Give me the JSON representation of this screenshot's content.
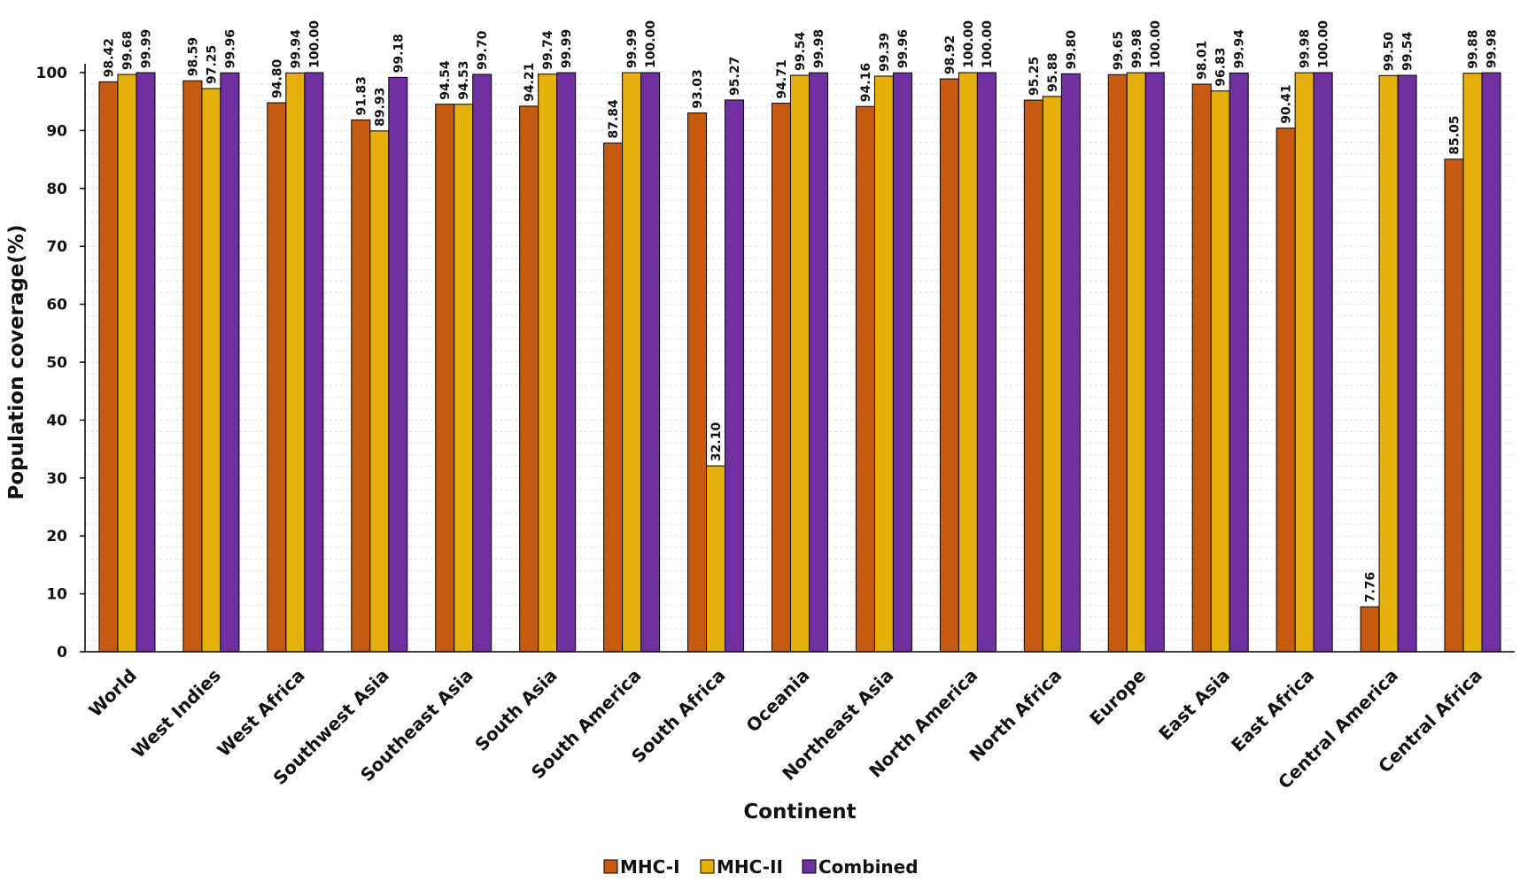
{
  "chart_data": {
    "type": "bar",
    "title": "",
    "xlabel": "Continent",
    "ylabel": "Population coverage(%)",
    "ylim": [
      0,
      100
    ],
    "yticks": [
      0,
      10,
      20,
      30,
      40,
      50,
      60,
      70,
      80,
      90,
      100
    ],
    "grid": true,
    "legend_position": "bottom-center",
    "categories": [
      "World",
      "West Indies",
      "West Africa",
      "Southwest Asia",
      "Southeast Asia",
      "South Asia",
      "South America",
      "South Africa",
      "Oceania",
      "Northeast Asia",
      "North America",
      "North Africa",
      "Europe",
      "East Asia",
      "East Africa",
      "Central America",
      "Central Africa"
    ],
    "series": [
      {
        "name": "MHC-I",
        "color": "#C55A11",
        "values": [
          98.42,
          98.59,
          94.8,
          91.83,
          94.54,
          94.21,
          87.84,
          93.03,
          94.71,
          94.16,
          98.92,
          95.25,
          99.65,
          98.01,
          90.41,
          7.76,
          85.05
        ]
      },
      {
        "name": "MHC-II",
        "color": "#E6B00A",
        "values": [
          99.68,
          97.25,
          99.94,
          89.93,
          94.53,
          99.74,
          99.99,
          32.1,
          99.54,
          99.39,
          100.0,
          95.88,
          99.98,
          96.83,
          99.98,
          99.5,
          99.88
        ]
      },
      {
        "name": "Combined",
        "color": "#7030A0",
        "values": [
          99.99,
          99.96,
          100.0,
          99.18,
          99.7,
          99.99,
          100.0,
          95.27,
          99.98,
          99.96,
          100.0,
          99.8,
          100.0,
          99.94,
          100.0,
          99.54,
          99.98
        ]
      }
    ],
    "data_labels": [
      [
        "98.42",
        "98.59",
        "94.80",
        "91.83",
        "94.54",
        "94.21",
        "87.84",
        "93.03",
        "94.71",
        "94.16",
        "98.92",
        "95.25",
        "99.65",
        "98.01",
        "90.41",
        "7.76",
        "85.05"
      ],
      [
        "99.68",
        "97.25",
        "99.94",
        "89.93",
        "94.53",
        "99.74",
        "99.99",
        "32.10",
        "99.54",
        "99.39",
        "100.00",
        "95.88",
        "99.98",
        "96.83",
        "99.98",
        "99.50",
        "99.88"
      ],
      [
        "99.99",
        "99.96",
        "100.00",
        "99.18",
        "99.70",
        "99.99",
        "100.00",
        "95.27",
        "99.98",
        "99.96",
        "100.00",
        "99.80",
        "100.00",
        "99.94",
        "100.00",
        "99.54",
        "99.98"
      ]
    ]
  }
}
